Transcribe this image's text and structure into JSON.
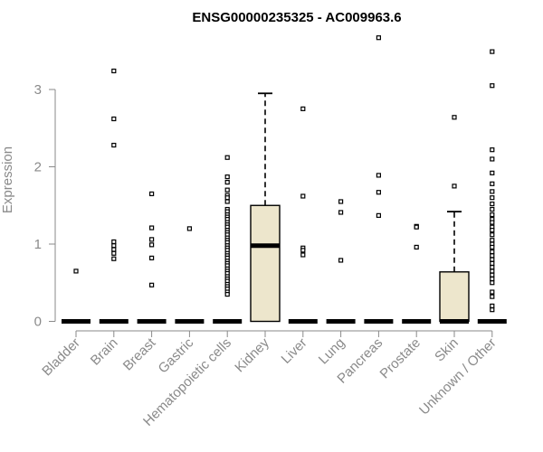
{
  "chart_data": {
    "type": "boxplot",
    "title": "ENSG00000235325 - AC009963.6",
    "ylabel": "Expression",
    "xlabel": "",
    "ylim": [
      0,
      3.55
    ],
    "yticks": [
      0,
      1,
      2,
      3
    ],
    "grid": false,
    "box_fill": "#ede6cc",
    "categories": [
      "Bladder",
      "Brain",
      "Breast",
      "Gastric",
      "Hematopoietic cells",
      "Kidney",
      "Liver",
      "Lung",
      "Pancreas",
      "Prostate",
      "Skin",
      "Unknown / Other"
    ],
    "boxes": [
      {
        "q1": 0,
        "median": 0,
        "q3": 0,
        "whisker_low": 0,
        "whisker_high": 0,
        "outliers": [
          0.65
        ]
      },
      {
        "q1": 0,
        "median": 0,
        "q3": 0,
        "whisker_low": 0,
        "whisker_high": 0,
        "outliers": [
          3.24,
          2.62,
          2.28,
          1.03,
          0.98,
          0.93,
          0.88,
          0.81
        ]
      },
      {
        "q1": 0,
        "median": 0,
        "q3": 0,
        "whisker_low": 0,
        "whisker_high": 0,
        "outliers": [
          1.65,
          1.21,
          1.06,
          0.99,
          0.82,
          0.47
        ]
      },
      {
        "q1": 0,
        "median": 0,
        "q3": 0,
        "whisker_low": 0,
        "whisker_high": 0,
        "outliers": [
          1.2
        ]
      },
      {
        "q1": 0,
        "median": 0,
        "q3": 0,
        "whisker_low": 0,
        "whisker_high": 0,
        "outliers": [
          2.12,
          1.87,
          1.8,
          1.7,
          1.63,
          1.6,
          1.55,
          1.45,
          1.42,
          1.38,
          1.35,
          1.32,
          1.28,
          1.25,
          1.22,
          1.18,
          1.15,
          1.12,
          1.08,
          1.05,
          1.02,
          0.98,
          0.95,
          0.92,
          0.88,
          0.85,
          0.82,
          0.78,
          0.75,
          0.72,
          0.68,
          0.65,
          0.62,
          0.58,
          0.55,
          0.52,
          0.48,
          0.45,
          0.42,
          0.38,
          0.35
        ]
      },
      {
        "q1": 0,
        "median": 0.98,
        "q3": 1.5,
        "whisker_low": 0,
        "whisker_high": 2.95,
        "outliers": []
      },
      {
        "q1": 0,
        "median": 0,
        "q3": 0,
        "whisker_low": 0,
        "whisker_high": 0,
        "outliers": [
          2.75,
          1.62,
          0.95,
          0.92,
          0.86
        ]
      },
      {
        "q1": 0,
        "median": 0,
        "q3": 0,
        "whisker_low": 0,
        "whisker_high": 0,
        "outliers": [
          1.55,
          1.41,
          0.79
        ]
      },
      {
        "q1": 0,
        "median": 0,
        "q3": 0,
        "whisker_low": 0,
        "whisker_high": 0,
        "outliers": [
          3.67,
          1.89,
          1.67,
          1.37
        ]
      },
      {
        "q1": 0,
        "median": 0,
        "q3": 0,
        "whisker_low": 0,
        "whisker_high": 0,
        "outliers": [
          1.23,
          1.22,
          0.96
        ]
      },
      {
        "q1": 0,
        "median": 0,
        "q3": 0.64,
        "whisker_low": 0,
        "whisker_high": 1.42,
        "outliers": [
          2.64,
          1.75
        ]
      },
      {
        "q1": 0,
        "median": 0,
        "q3": 0,
        "whisker_low": 0,
        "whisker_high": 0,
        "outliers": [
          3.49,
          3.05,
          2.22,
          2.1,
          1.92,
          1.78,
          1.68,
          1.6,
          1.52,
          1.45,
          1.38,
          1.32,
          1.28,
          1.22,
          1.18,
          1.12,
          1.05,
          1.0,
          0.96,
          0.9,
          0.85,
          0.8,
          0.75,
          0.7,
          0.65,
          0.6,
          0.55,
          0.5,
          0.38,
          0.32,
          0.2,
          0.15
        ]
      }
    ]
  }
}
